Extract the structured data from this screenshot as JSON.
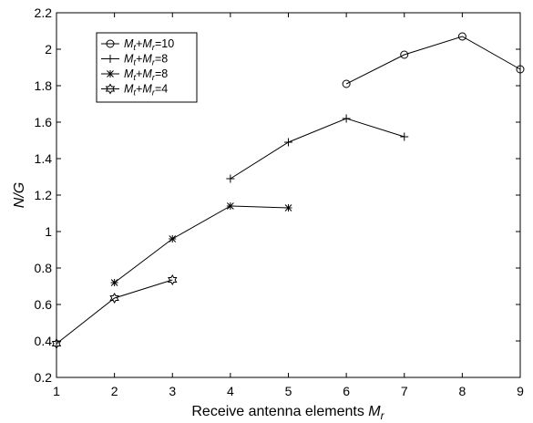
{
  "chart_data": {
    "type": "line",
    "title": "",
    "xlabel": "Receive antenna elements M_r",
    "ylabel": "N/G",
    "xlim": [
      1,
      9
    ],
    "ylim": [
      0.2,
      2.2
    ],
    "xticks": [
      1,
      2,
      3,
      4,
      5,
      6,
      7,
      8,
      9
    ],
    "yticks": [
      0.2,
      0.4,
      0.6,
      0.8,
      1,
      1.2,
      1.4,
      1.6,
      1.8,
      2,
      2.2
    ],
    "grid": false,
    "legend_position": "top-left",
    "series": [
      {
        "name": "Mt+Mr=10",
        "marker": "circle",
        "x": [
          6,
          7,
          8,
          9
        ],
        "y": [
          1.81,
          1.97,
          2.07,
          1.89
        ]
      },
      {
        "name": "Mt+Mr=8",
        "marker": "plus",
        "x": [
          4,
          5,
          6,
          7
        ],
        "y": [
          1.29,
          1.49,
          1.62,
          1.52
        ]
      },
      {
        "name": "Mt+Mr=8",
        "marker": "asterisk",
        "x": [
          2,
          3,
          4,
          5
        ],
        "y": [
          0.72,
          0.96,
          1.14,
          1.13
        ]
      },
      {
        "name": "Mt+Mr=4",
        "marker": "hexagram",
        "x": [
          1,
          2,
          3
        ],
        "y": [
          0.385,
          0.635,
          0.735
        ]
      }
    ]
  }
}
